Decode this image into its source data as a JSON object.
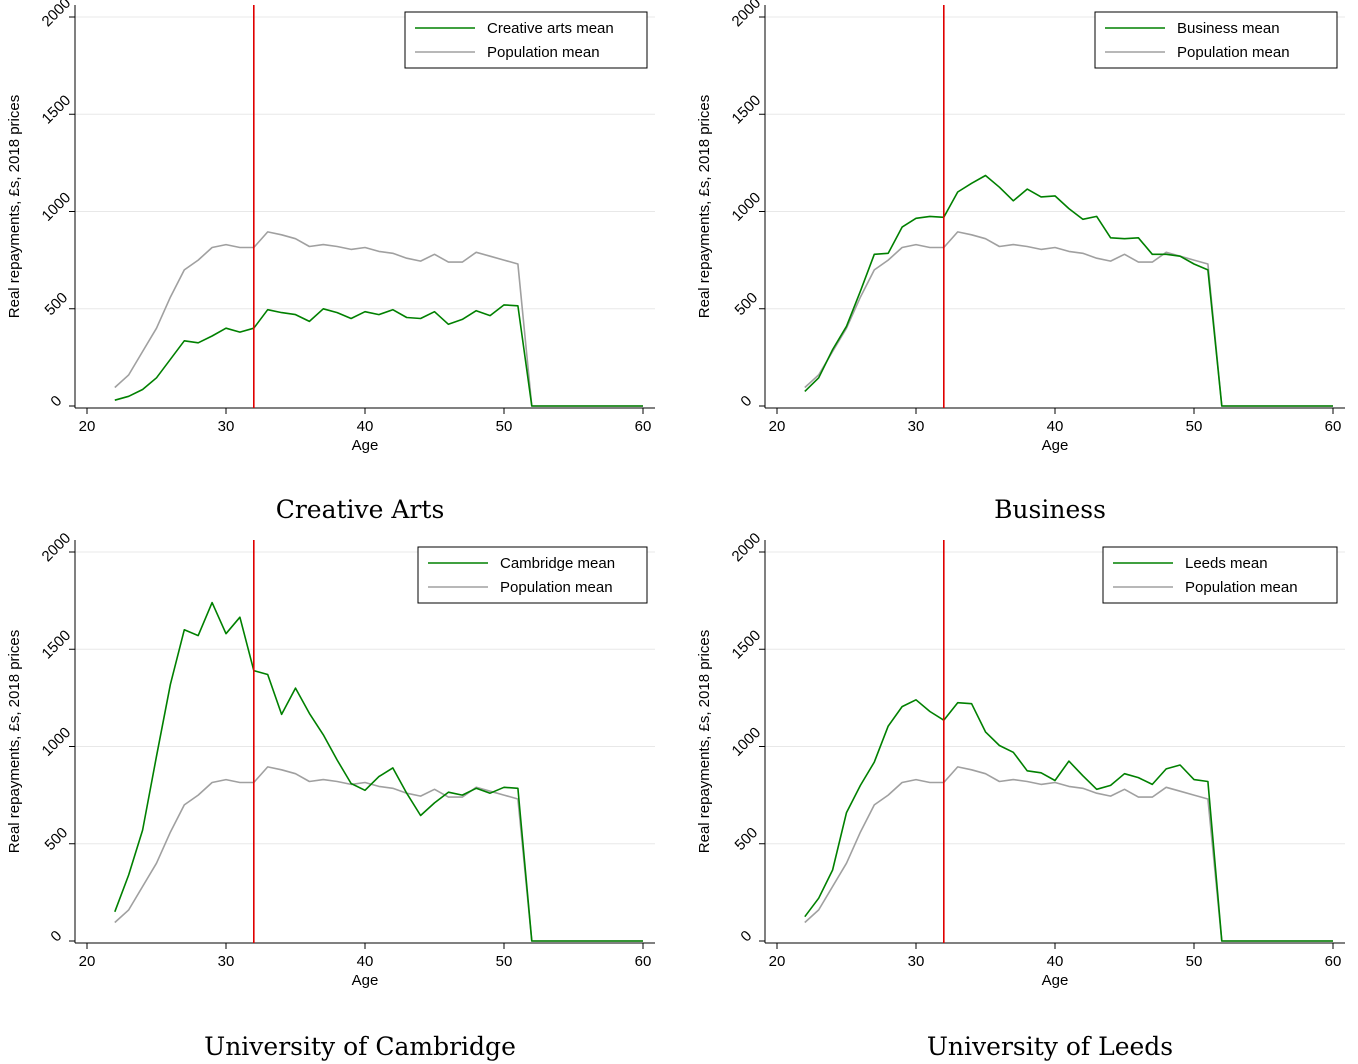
{
  "colors": {
    "series_main": "#008000",
    "series_population": "#a0a0a0",
    "reference_line": "#e00000",
    "grid": "#e8e8e8"
  },
  "chart_data": [
    {
      "type": "line",
      "caption": "Creative Arts",
      "xlabel": "Age",
      "ylabel": "Real repayments, £s, 2018 prices",
      "xlim": [
        20,
        60
      ],
      "ylim": [
        0,
        2000
      ],
      "xticks": [
        "20",
        "30",
        "40",
        "50",
        "60"
      ],
      "yticks": [
        "0",
        "500",
        "1000",
        "1500",
        "2000"
      ],
      "grid": true,
      "legend": "top-right",
      "reference_x": 32,
      "x": [
        22,
        23,
        24,
        25,
        26,
        27,
        28,
        29,
        30,
        31,
        32,
        33,
        34,
        35,
        36,
        37,
        38,
        39,
        40,
        41,
        42,
        43,
        44,
        45,
        46,
        47,
        48,
        49,
        50,
        51,
        52,
        53,
        54,
        55,
        56,
        57,
        58,
        59,
        60
      ],
      "series": [
        {
          "name": "Creative arts mean",
          "color_key": "series_main",
          "values": [
            30,
            50,
            85,
            145,
            240,
            335,
            325,
            360,
            400,
            380,
            400,
            495,
            480,
            470,
            435,
            500,
            480,
            450,
            485,
            470,
            495,
            455,
            450,
            485,
            420,
            445,
            490,
            465,
            520,
            515,
            0,
            0,
            0,
            0,
            0,
            0,
            0,
            0,
            0
          ]
        },
        {
          "name": "Population mean",
          "color_key": "series_population",
          "values": [
            95,
            160,
            280,
            400,
            560,
            700,
            750,
            815,
            830,
            815,
            815,
            895,
            880,
            860,
            820,
            830,
            820,
            805,
            815,
            795,
            785,
            760,
            745,
            780,
            740,
            740,
            790,
            770,
            750,
            730,
            0,
            0,
            0,
            0,
            0,
            0,
            0,
            0,
            0
          ]
        }
      ]
    },
    {
      "type": "line",
      "caption": "Business",
      "xlabel": "Age",
      "ylabel": "Real repayments, £s, 2018 prices",
      "xlim": [
        20,
        60
      ],
      "ylim": [
        0,
        2000
      ],
      "xticks": [
        "20",
        "30",
        "40",
        "50",
        "60"
      ],
      "yticks": [
        "0",
        "500",
        "1000",
        "1500",
        "2000"
      ],
      "grid": true,
      "legend": "top-right",
      "reference_x": 32,
      "x": [
        22,
        23,
        24,
        25,
        26,
        27,
        28,
        29,
        30,
        31,
        32,
        33,
        34,
        35,
        36,
        37,
        38,
        39,
        40,
        41,
        42,
        43,
        44,
        45,
        46,
        47,
        48,
        49,
        50,
        51,
        52,
        53,
        54,
        55,
        56,
        57,
        58,
        59,
        60
      ],
      "series": [
        {
          "name": "Business mean",
          "color_key": "series_main",
          "values": [
            75,
            145,
            290,
            410,
            590,
            780,
            785,
            920,
            965,
            975,
            970,
            1100,
            1145,
            1185,
            1125,
            1055,
            1115,
            1075,
            1080,
            1015,
            960,
            975,
            865,
            860,
            865,
            780,
            780,
            770,
            730,
            700,
            0,
            0,
            0,
            0,
            0,
            0,
            0,
            0,
            0
          ]
        },
        {
          "name": "Population mean",
          "color_key": "series_population",
          "values": [
            95,
            160,
            280,
            400,
            560,
            700,
            750,
            815,
            830,
            815,
            815,
            895,
            880,
            860,
            820,
            830,
            820,
            805,
            815,
            795,
            785,
            760,
            745,
            780,
            740,
            740,
            790,
            770,
            750,
            730,
            0,
            0,
            0,
            0,
            0,
            0,
            0,
            0,
            0
          ]
        }
      ]
    },
    {
      "type": "line",
      "caption": "University of Cambridge",
      "xlabel": "Age",
      "ylabel": "Real repayments, £s, 2018 prices",
      "xlim": [
        20,
        60
      ],
      "ylim": [
        0,
        2000
      ],
      "xticks": [
        "20",
        "30",
        "40",
        "50",
        "60"
      ],
      "yticks": [
        "0",
        "500",
        "1000",
        "1500",
        "2000"
      ],
      "grid": true,
      "legend": "top-right",
      "reference_x": 32,
      "x": [
        22,
        23,
        24,
        25,
        26,
        27,
        28,
        29,
        30,
        31,
        32,
        33,
        34,
        35,
        36,
        37,
        38,
        39,
        40,
        41,
        42,
        43,
        44,
        45,
        46,
        47,
        48,
        49,
        50,
        51,
        52,
        53,
        54,
        55,
        56,
        57,
        58,
        59,
        60
      ],
      "series": [
        {
          "name": "Cambridge mean",
          "color_key": "series_main",
          "values": [
            150,
            340,
            570,
            950,
            1320,
            1600,
            1570,
            1740,
            1580,
            1665,
            1390,
            1370,
            1165,
            1300,
            1170,
            1060,
            930,
            810,
            775,
            845,
            890,
            760,
            645,
            710,
            765,
            750,
            785,
            760,
            790,
            785,
            0,
            0,
            0,
            0,
            0,
            0,
            0,
            0,
            0
          ]
        },
        {
          "name": "Population mean",
          "color_key": "series_population",
          "values": [
            95,
            160,
            280,
            400,
            560,
            700,
            750,
            815,
            830,
            815,
            815,
            895,
            880,
            860,
            820,
            830,
            820,
            805,
            815,
            795,
            785,
            760,
            745,
            780,
            740,
            740,
            790,
            770,
            750,
            730,
            0,
            0,
            0,
            0,
            0,
            0,
            0,
            0,
            0
          ]
        }
      ]
    },
    {
      "type": "line",
      "caption": "University of Leeds",
      "xlabel": "Age",
      "ylabel": "Real repayments, £s, 2018 prices",
      "xlim": [
        20,
        60
      ],
      "ylim": [
        0,
        2000
      ],
      "xticks": [
        "20",
        "30",
        "40",
        "50",
        "60"
      ],
      "yticks": [
        "0",
        "500",
        "1000",
        "1500",
        "2000"
      ],
      "grid": true,
      "legend": "top-right",
      "reference_x": 32,
      "x": [
        22,
        23,
        24,
        25,
        26,
        27,
        28,
        29,
        30,
        31,
        32,
        33,
        34,
        35,
        36,
        37,
        38,
        39,
        40,
        41,
        42,
        43,
        44,
        45,
        46,
        47,
        48,
        49,
        50,
        51,
        52,
        53,
        54,
        55,
        56,
        57,
        58,
        59,
        60
      ],
      "series": [
        {
          "name": "Leeds mean",
          "color_key": "series_main",
          "values": [
            125,
            220,
            365,
            660,
            800,
            920,
            1105,
            1205,
            1240,
            1180,
            1135,
            1225,
            1220,
            1075,
            1005,
            970,
            875,
            865,
            825,
            925,
            850,
            780,
            800,
            860,
            840,
            805,
            885,
            905,
            830,
            820,
            0,
            0,
            0,
            0,
            0,
            0,
            0,
            0,
            0
          ]
        },
        {
          "name": "Population mean",
          "color_key": "series_population",
          "values": [
            95,
            160,
            280,
            400,
            560,
            700,
            750,
            815,
            830,
            815,
            815,
            895,
            880,
            860,
            820,
            830,
            820,
            805,
            815,
            795,
            785,
            760,
            745,
            780,
            740,
            740,
            790,
            770,
            750,
            730,
            0,
            0,
            0,
            0,
            0,
            0,
            0,
            0,
            0
          ]
        }
      ]
    }
  ]
}
